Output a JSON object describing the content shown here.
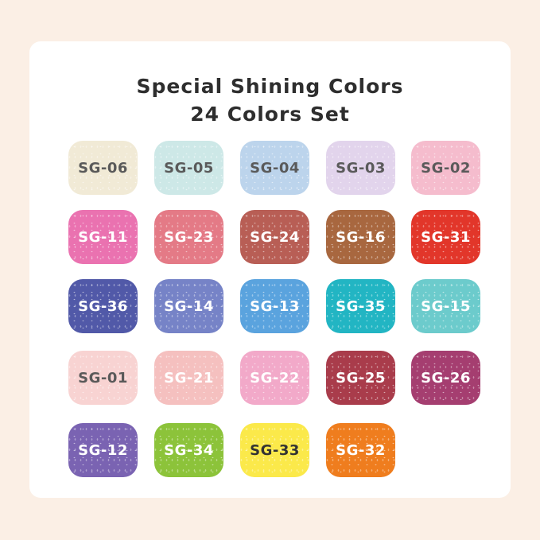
{
  "title_line1": "Special Shining Colors",
  "title_line2": "24 Colors Set",
  "swatches": [
    {
      "code": "SG-06",
      "color": "#f1ead6",
      "text": "#5a5a5a"
    },
    {
      "code": "SG-05",
      "color": "#cde8e7",
      "text": "#5a5a5a"
    },
    {
      "code": "SG-04",
      "color": "#bcd4ec",
      "text": "#5a5a5a"
    },
    {
      "code": "SG-03",
      "color": "#e2d4ec",
      "text": "#5a5a5a"
    },
    {
      "code": "SG-02",
      "color": "#f5bccd",
      "text": "#5a5a5a"
    },
    {
      "code": "SG-11",
      "color": "#ea72b0",
      "text": "#ffffff"
    },
    {
      "code": "SG-23",
      "color": "#e47a86",
      "text": "#ffffff"
    },
    {
      "code": "SG-24",
      "color": "#b85e55",
      "text": "#ffffff"
    },
    {
      "code": "SG-16",
      "color": "#a8673f",
      "text": "#ffffff"
    },
    {
      "code": "SG-31",
      "color": "#e2362a",
      "text": "#ffffff"
    },
    {
      "code": "SG-36",
      "color": "#5159a8",
      "text": "#ffffff"
    },
    {
      "code": "SG-14",
      "color": "#7683c7",
      "text": "#ffffff"
    },
    {
      "code": "SG-13",
      "color": "#5aa3de",
      "text": "#ffffff"
    },
    {
      "code": "SG-35",
      "color": "#22b5c3",
      "text": "#ffffff"
    },
    {
      "code": "SG-15",
      "color": "#6ccbcc",
      "text": "#ffffff"
    },
    {
      "code": "SG-01",
      "color": "#f8d3d2",
      "text": "#5a5a5a"
    },
    {
      "code": "SG-21",
      "color": "#f5c0bf",
      "text": "#ffffff"
    },
    {
      "code": "SG-22",
      "color": "#f2a9c9",
      "text": "#ffffff"
    },
    {
      "code": "SG-25",
      "color": "#a93c4b",
      "text": "#ffffff"
    },
    {
      "code": "SG-26",
      "color": "#a53e70",
      "text": "#ffffff"
    },
    {
      "code": "SG-12",
      "color": "#7a63b2",
      "text": "#ffffff"
    },
    {
      "code": "SG-34",
      "color": "#8cc33a",
      "text": "#ffffff"
    },
    {
      "code": "SG-33",
      "color": "#fbe94a",
      "text": "#333333"
    },
    {
      "code": "SG-32",
      "color": "#ef7d1e",
      "text": "#ffffff"
    }
  ]
}
